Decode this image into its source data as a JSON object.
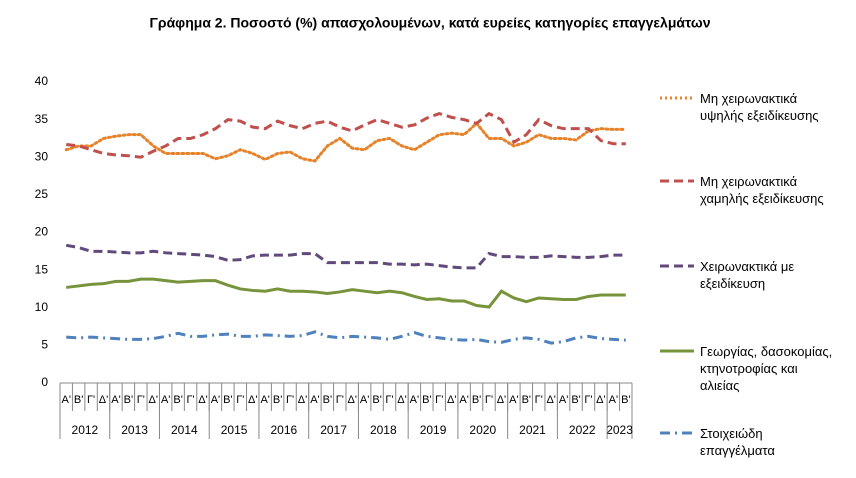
{
  "chart_data": {
    "type": "line",
    "title": "Γράφημα 2. Ποσοστό (%) απασχολουμένων, κατά ευρείες κατηγορίες επαγγελμάτων",
    "categories": [
      "Α'",
      "Β'",
      "Γ'",
      "Δ'",
      "Α'",
      "Β'",
      "Γ'",
      "Δ'",
      "Α'",
      "Β'",
      "Γ'",
      "Δ'",
      "Α'",
      "Β'",
      "Γ'",
      "Δ'",
      "Α'",
      "Β'",
      "Γ'",
      "Δ'",
      "Α'",
      "Β'",
      "Γ'",
      "Δ'",
      "Α'",
      "Β'",
      "Γ'",
      "Δ'",
      "Α'",
      "Β'",
      "Γ'",
      "Δ'",
      "Α'",
      "Β'",
      "Γ'",
      "Δ'",
      "Α'",
      "Β'",
      "Γ'",
      "Δ'",
      "Α'",
      "Β'",
      "Γ'",
      "Δ'",
      "Α'",
      "Β'"
    ],
    "year_labels": [
      "2012",
      "2013",
      "2014",
      "2015",
      "2016",
      "2017",
      "2018",
      "2019",
      "2020",
      "2021",
      "2022",
      "2023"
    ],
    "ylim": [
      0,
      40
    ],
    "yticks": [
      0,
      5,
      10,
      15,
      20,
      25,
      30,
      35,
      40
    ],
    "grid": false,
    "series": [
      {
        "name": "Μη χειρωνακτικά υψηλής εξειδίκευσης",
        "color": "#e6832a",
        "dash": "2 3",
        "values": [
          31,
          31.5,
          31.5,
          32.5,
          32.8,
          33,
          33,
          31.5,
          30.5,
          30.5,
          30.5,
          30.5,
          29.8,
          30.2,
          31,
          30.5,
          29.7,
          30.5,
          30.7,
          29.8,
          29.5,
          31.5,
          32.5,
          31.2,
          31,
          32.2,
          32.5,
          31.5,
          31,
          32,
          33,
          33.2,
          33,
          34.5,
          32.5,
          32.5,
          31.5,
          32,
          33,
          32.5,
          32.5,
          32.3,
          33.5,
          33.8,
          33.7,
          33.7
        ]
      },
      {
        "name": "Μη χειρωνακτικά χαμηλής εξειδίκευσης",
        "color": "#c0504d",
        "dash": "9 5",
        "values": [
          31.7,
          31.5,
          31,
          30.5,
          30.3,
          30.2,
          30,
          30.8,
          31.5,
          32.5,
          32.5,
          33,
          33.8,
          35,
          34.8,
          34,
          33.8,
          34.8,
          34.2,
          33.8,
          34.5,
          34.8,
          34,
          33.5,
          34.3,
          35,
          34.5,
          34,
          34.3,
          35.2,
          35.8,
          35.3,
          35,
          34.5,
          35.8,
          35,
          32,
          33,
          35,
          34.2,
          33.8,
          33.8,
          33.8,
          32.2,
          31.8,
          31.8
        ]
      },
      {
        "name": "Χειρωνακτικά με εξειδίκευση",
        "color": "#604a7b",
        "dash": "9 5",
        "values": [
          18.3,
          18,
          17.5,
          17.5,
          17.4,
          17.3,
          17.3,
          17.5,
          17.3,
          17.2,
          17.1,
          17,
          16.8,
          16.3,
          16.4,
          16.9,
          17,
          17,
          17,
          17.2,
          17.2,
          16,
          16,
          16,
          16,
          16,
          15.8,
          15.8,
          15.7,
          15.8,
          15.6,
          15.4,
          15.3,
          15.3,
          17.2,
          16.8,
          16.8,
          16.7,
          16.7,
          16.9,
          16.8,
          16.7,
          16.7,
          16.8,
          17,
          17
        ]
      },
      {
        "name": "Γεωργίας, δασοκομίας, κτηνοτροφίας και αλιείας",
        "color": "#77933c",
        "dash": "",
        "values": [
          12.7,
          12.9,
          13.1,
          13.2,
          13.5,
          13.5,
          13.8,
          13.8,
          13.6,
          13.4,
          13.5,
          13.6,
          13.6,
          13,
          12.5,
          12.3,
          12.2,
          12.5,
          12.2,
          12.2,
          12.1,
          11.9,
          12.1,
          12.4,
          12.2,
          12,
          12.2,
          12,
          11.5,
          11.1,
          11.2,
          10.9,
          10.9,
          10.3,
          10.1,
          12.2,
          11.3,
          10.8,
          11.3,
          11.2,
          11.1,
          11.1,
          11.5,
          11.7,
          11.7,
          11.7
        ]
      },
      {
        "name": "Στοιχειώδη επαγγέλματα",
        "color": "#4f81bd",
        "dash": "10 5 2 5",
        "values": [
          6.1,
          6,
          6.1,
          6,
          5.9,
          5.8,
          5.8,
          5.9,
          6.2,
          6.6,
          6.2,
          6.2,
          6.4,
          6.5,
          6.2,
          6.2,
          6.4,
          6.3,
          6.2,
          6.3,
          6.8,
          6.2,
          6,
          6.2,
          6.1,
          6,
          5.8,
          6.2,
          6.7,
          6.2,
          6,
          5.8,
          5.7,
          5.8,
          5.5,
          5.4,
          5.8,
          6,
          5.8,
          5.3,
          5.5,
          6,
          6.2,
          5.9,
          5.8,
          5.7
        ]
      }
    ]
  }
}
